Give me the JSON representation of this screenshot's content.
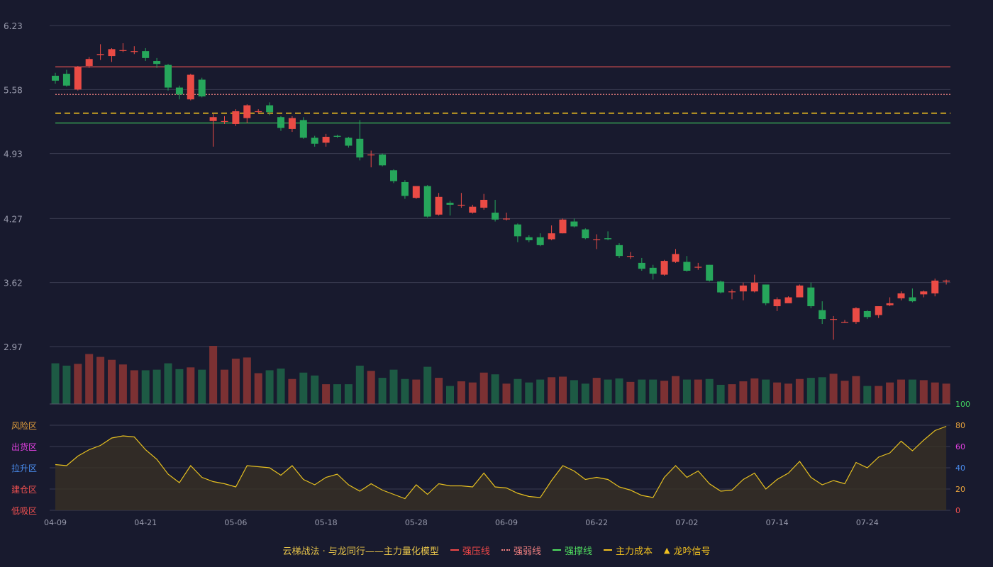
{
  "chart_data": {
    "type": "candlestick",
    "price_axis": {
      "ticks": [
        6.23,
        5.58,
        4.93,
        4.27,
        3.62,
        2.97
      ],
      "range": [
        2.97,
        6.23
      ]
    },
    "x_ticks": [
      "04-09",
      "04-21",
      "05-06",
      "05-18",
      "05-28",
      "06-09",
      "06-22",
      "07-02",
      "07-14",
      "07-24"
    ],
    "x_tick_index": [
      0,
      8,
      16,
      24,
      32,
      40,
      48,
      56,
      64,
      72
    ],
    "reference_lines": [
      {
        "name": "强压线",
        "value": 5.81,
        "color": "#e05050",
        "style": "solid"
      },
      {
        "name": "强弱线",
        "value": 5.53,
        "color": "#f08080",
        "style": "dotted"
      },
      {
        "name": "主力成本",
        "value": 5.34,
        "color": "#f0c020",
        "style": "dashed"
      },
      {
        "name": "强撑线",
        "value": 5.24,
        "color": "#40d060",
        "style": "solid"
      }
    ],
    "ohlc": [
      [
        5.72,
        5.67,
        5.75,
        5.64
      ],
      [
        5.74,
        5.62,
        5.78,
        5.61
      ],
      [
        5.58,
        5.81,
        5.82,
        5.57
      ],
      [
        5.82,
        5.89,
        5.91,
        5.8
      ],
      [
        5.93,
        5.94,
        6.04,
        5.88
      ],
      [
        5.92,
        5.99,
        6.0,
        5.86
      ],
      [
        5.98,
        5.98,
        6.05,
        5.96
      ],
      [
        5.97,
        5.97,
        6.02,
        5.94
      ],
      [
        5.97,
        5.9,
        6.0,
        5.87
      ],
      [
        5.87,
        5.84,
        5.9,
        5.8
      ],
      [
        5.83,
        5.6,
        5.84,
        5.57
      ],
      [
        5.6,
        5.53,
        5.62,
        5.48
      ],
      [
        5.48,
        5.73,
        5.74,
        5.47
      ],
      [
        5.68,
        5.51,
        5.7,
        5.5
      ],
      [
        5.26,
        5.3,
        5.33,
        5.0
      ],
      [
        5.26,
        5.26,
        5.31,
        5.23
      ],
      [
        5.23,
        5.36,
        5.38,
        5.21
      ],
      [
        5.29,
        5.42,
        5.43,
        5.24
      ],
      [
        5.36,
        5.36,
        5.38,
        5.34
      ],
      [
        5.42,
        5.35,
        5.45,
        5.32
      ],
      [
        5.3,
        5.19,
        5.31,
        5.16
      ],
      [
        5.18,
        5.29,
        5.31,
        5.15
      ],
      [
        5.27,
        5.09,
        5.3,
        5.08
      ],
      [
        5.09,
        5.03,
        5.11,
        5.0
      ],
      [
        5.04,
        5.1,
        5.13,
        5.0
      ],
      [
        5.11,
        5.1,
        5.12,
        5.09
      ],
      [
        5.09,
        5.01,
        5.1,
        4.99
      ],
      [
        5.08,
        4.89,
        5.27,
        4.86
      ],
      [
        4.92,
        4.92,
        4.96,
        4.79
      ],
      [
        4.92,
        4.81,
        4.93,
        4.8
      ],
      [
        4.76,
        4.65,
        4.77,
        4.63
      ],
      [
        4.64,
        4.5,
        4.66,
        4.47
      ],
      [
        4.48,
        4.6,
        4.6,
        4.47
      ],
      [
        4.6,
        4.29,
        4.61,
        4.28
      ],
      [
        4.31,
        4.49,
        4.53,
        4.3
      ],
      [
        4.43,
        4.41,
        4.45,
        4.3
      ],
      [
        4.41,
        4.41,
        4.53,
        4.38
      ],
      [
        4.33,
        4.39,
        4.41,
        4.32
      ],
      [
        4.38,
        4.46,
        4.52,
        4.36
      ],
      [
        4.33,
        4.26,
        4.46,
        4.24
      ],
      [
        4.27,
        4.27,
        4.33,
        4.25
      ],
      [
        4.21,
        4.09,
        4.22,
        4.03
      ],
      [
        4.08,
        4.05,
        4.1,
        4.03
      ],
      [
        4.08,
        4.0,
        4.12,
        3.99
      ],
      [
        4.06,
        4.12,
        4.2,
        4.05
      ],
      [
        4.12,
        4.26,
        4.27,
        4.12
      ],
      [
        4.24,
        4.19,
        4.27,
        4.18
      ],
      [
        4.16,
        4.07,
        4.17,
        4.06
      ],
      [
        4.06,
        4.06,
        4.11,
        3.96
      ],
      [
        4.07,
        4.06,
        4.14,
        4.05
      ],
      [
        4.0,
        3.89,
        4.02,
        3.87
      ],
      [
        3.89,
        3.89,
        3.93,
        3.86
      ],
      [
        3.82,
        3.76,
        3.87,
        3.74
      ],
      [
        3.77,
        3.71,
        3.8,
        3.65
      ],
      [
        3.7,
        3.84,
        3.85,
        3.69
      ],
      [
        3.83,
        3.91,
        3.96,
        3.82
      ],
      [
        3.83,
        3.74,
        3.89,
        3.73
      ],
      [
        3.78,
        3.78,
        3.82,
        3.75
      ],
      [
        3.8,
        3.64,
        3.8,
        3.63
      ],
      [
        3.63,
        3.52,
        3.64,
        3.51
      ],
      [
        3.53,
        3.53,
        3.55,
        3.45
      ],
      [
        3.53,
        3.59,
        3.62,
        3.44
      ],
      [
        3.53,
        3.62,
        3.7,
        3.52
      ],
      [
        3.6,
        3.41,
        3.6,
        3.39
      ],
      [
        3.38,
        3.45,
        3.47,
        3.33
      ],
      [
        3.41,
        3.47,
        3.48,
        3.42
      ],
      [
        3.47,
        3.59,
        3.6,
        3.47
      ],
      [
        3.57,
        3.38,
        3.62,
        3.36
      ],
      [
        3.34,
        3.25,
        3.43,
        3.2
      ],
      [
        3.25,
        3.25,
        3.28,
        3.04
      ],
      [
        3.22,
        3.22,
        3.24,
        3.21
      ],
      [
        3.22,
        3.36,
        3.37,
        3.2
      ],
      [
        3.33,
        3.27,
        3.34,
        3.25
      ],
      [
        3.29,
        3.38,
        3.38,
        3.26
      ],
      [
        3.39,
        3.41,
        3.47,
        3.38
      ],
      [
        3.46,
        3.51,
        3.53,
        3.44
      ],
      [
        3.47,
        3.43,
        3.56,
        3.42
      ],
      [
        3.5,
        3.53,
        3.54,
        3.47
      ],
      [
        3.51,
        3.64,
        3.66,
        3.48
      ],
      [
        3.63,
        3.64,
        3.65,
        3.6
      ]
    ],
    "volume": [
      70,
      66,
      69,
      86,
      81,
      76,
      68,
      58,
      58,
      59,
      70,
      60,
      63,
      59,
      100,
      59,
      78,
      80,
      53,
      58,
      61,
      43,
      54,
      49,
      34,
      34,
      34,
      66,
      57,
      45,
      59,
      43,
      42,
      64,
      45,
      31,
      39,
      37,
      54,
      51,
      35,
      43,
      37,
      42,
      46,
      47,
      41,
      35,
      45,
      42,
      44,
      38,
      42,
      42,
      40,
      48,
      42,
      42,
      43,
      33,
      34,
      39,
      44,
      42,
      37,
      35,
      43,
      45,
      46,
      52,
      40,
      48,
      31,
      31,
      37,
      42,
      42,
      41,
      37,
      35
    ],
    "indicator_axis": {
      "ticks": [
        100,
        80,
        60,
        40,
        20,
        0
      ],
      "range": [
        0,
        100
      ]
    },
    "zones": [
      {
        "label": "风险区",
        "color": "#e6a23c"
      },
      {
        "label": "出货区",
        "color": "#e040e0"
      },
      {
        "label": "拉升区",
        "color": "#4a8df0"
      },
      {
        "label": "建仓区",
        "color": "#f05050"
      },
      {
        "label": "低吸区",
        "color": "#f05050"
      }
    ],
    "indicator": [
      43,
      42,
      51,
      57,
      61,
      68,
      70,
      69,
      57,
      48,
      34,
      26,
      42,
      31,
      27,
      25,
      22,
      42,
      41,
      40,
      33,
      42,
      29,
      24,
      31,
      34,
      24,
      18,
      25,
      19,
      15,
      11,
      24,
      15,
      25,
      23,
      23,
      22,
      35,
      22,
      21,
      16,
      13,
      12,
      28,
      42,
      37,
      29,
      31,
      29,
      22,
      19,
      14,
      12,
      31,
      42,
      31,
      37,
      25,
      18,
      19,
      29,
      35,
      20,
      29,
      35,
      46,
      31,
      24,
      28,
      25,
      45,
      40,
      50,
      54,
      65,
      56,
      66,
      75,
      79
    ]
  },
  "legend": {
    "model_title": "云梯战法 · 与龙同行——主力量化模型",
    "items": [
      {
        "label": "强压线",
        "color": "#f04848",
        "style": "solid"
      },
      {
        "label": "强弱线",
        "color": "#f08080",
        "style": "dotted"
      },
      {
        "label": "强撑线",
        "color": "#50e060",
        "style": "solid"
      },
      {
        "label": "主力成本",
        "color": "#f0c020",
        "style": "dashed"
      }
    ],
    "signal": {
      "label": "龙吟信号",
      "icon": "triangle-up-icon",
      "color": "#f0c020"
    }
  },
  "colors": {
    "up": "#ea4b45",
    "down": "#26a65b",
    "vol_up": "#7c3133",
    "vol_down": "#1d5a44",
    "indicator_line": "#e6c020",
    "grid": "#3a3c52",
    "axis_text": "#9a9cae"
  }
}
